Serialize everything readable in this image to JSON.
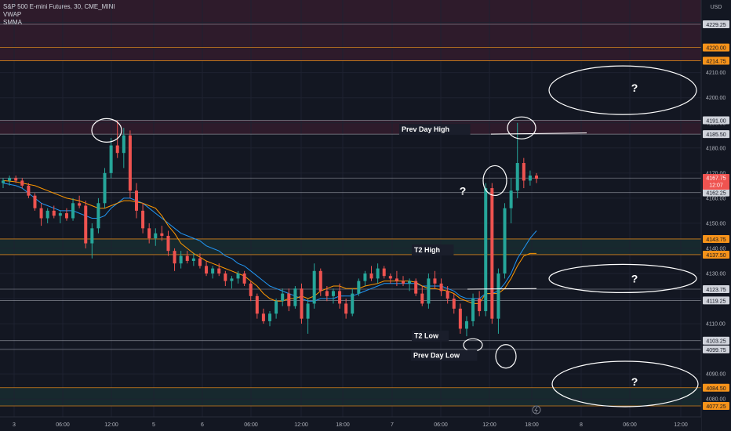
{
  "legend": {
    "symbol": "S&P 500 E-mini Futures, 30, CME_MINI",
    "indicator1": "VWAP",
    "indicator2": "SMMA"
  },
  "currency": "USD",
  "price_badge": {
    "price": "4167.75",
    "countdown": "12:07"
  },
  "colors": {
    "background": "#131722",
    "up": "#26a69a",
    "down": "#ef5350",
    "vwap": "#2196f3",
    "smma": "#ff9800",
    "level_white": "#b2b5be",
    "level_orange": "#f7931a"
  },
  "chart_data": {
    "type": "candlestick",
    "ylim": [
      4070,
      4245
    ],
    "y_ticks": [
      4080,
      4090,
      4100,
      4110,
      4120,
      4130,
      4140,
      4150,
      4160,
      4170,
      4180,
      4190,
      4200,
      4210,
      4220,
      4230,
      4240
    ],
    "x_ticks": [
      "3",
      "06:00",
      "12:00",
      "5",
      "6",
      "06:00",
      "12:00",
      "18:00",
      "7",
      "06:00",
      "12:00",
      "18:00",
      "8",
      "06:00",
      "12:00"
    ],
    "levels": [
      {
        "price": 4229.25,
        "label": "4229.25",
        "style": "white"
      },
      {
        "price": 4220.0,
        "label": "4220.00",
        "style": "orange"
      },
      {
        "price": 4214.75,
        "label": "4214.75",
        "style": "orange"
      },
      {
        "price": 4191.0,
        "label": "4191.00",
        "style": "white"
      },
      {
        "price": 4185.5,
        "label": "4185.50",
        "style": "white"
      },
      {
        "price": 4168.0,
        "label": "4168.00",
        "style": "white"
      },
      {
        "price": 4162.25,
        "label": "4162.25",
        "style": "white"
      },
      {
        "price": 4143.75,
        "label": "4143.75",
        "style": "orange"
      },
      {
        "price": 4137.5,
        "label": "4137.50",
        "style": "orange"
      },
      {
        "price": 4123.75,
        "label": "4123.75",
        "style": "white"
      },
      {
        "price": 4119.25,
        "label": "4119.25",
        "style": "white"
      },
      {
        "price": 4103.25,
        "label": "4103.25",
        "style": "white"
      },
      {
        "price": 4099.75,
        "label": "4099.75",
        "style": "white"
      },
      {
        "price": 4084.5,
        "label": "4084.50",
        "style": "orange"
      },
      {
        "price": 4077.25,
        "label": "4077.25",
        "style": "orange"
      }
    ],
    "zones": [
      {
        "from": 4214.75,
        "to": 4240.0,
        "kind": "supply"
      },
      {
        "from": 4185.5,
        "to": 4191.0,
        "kind": "supply"
      },
      {
        "from": 4137.5,
        "to": 4143.75,
        "kind": "demand"
      },
      {
        "from": 4077.25,
        "to": 4084.5,
        "kind": "demand"
      }
    ],
    "annotations": [
      {
        "text": "Prev Day High",
        "price": 4185.5
      },
      {
        "text": "T2 High",
        "price": 4137.5
      },
      {
        "text": "T2 Low",
        "price": 4103.25
      },
      {
        "text": "Prev Day Low",
        "price": 4095.5
      },
      {
        "text": "?",
        "price": 4204
      },
      {
        "text": "?",
        "price": 4163
      },
      {
        "text": "?",
        "price": 4128
      },
      {
        "text": "?",
        "price": 4087
      }
    ],
    "candles": [
      [
        4166,
        4168,
        4164,
        4167
      ],
      [
        4167,
        4169,
        4165,
        4168
      ],
      [
        4168,
        4169,
        4166,
        4167
      ],
      [
        4167,
        4168,
        4164,
        4165
      ],
      [
        4165,
        4166,
        4160,
        4161
      ],
      [
        4161,
        4162,
        4155,
        4156
      ],
      [
        4156,
        4158,
        4149,
        4152
      ],
      [
        4152,
        4156,
        4150,
        4155
      ],
      [
        4155,
        4157,
        4152,
        4153
      ],
      [
        4153,
        4155,
        4150,
        4154
      ],
      [
        4154,
        4156,
        4151,
        4152
      ],
      [
        4152,
        4160,
        4151,
        4158
      ],
      [
        4158,
        4161,
        4156,
        4157
      ],
      [
        4157,
        4159,
        4140,
        4142
      ],
      [
        4142,
        4150,
        4136,
        4148
      ],
      [
        4148,
        4160,
        4146,
        4158
      ],
      [
        4158,
        4172,
        4156,
        4170
      ],
      [
        4170,
        4184,
        4168,
        4181
      ],
      [
        4181,
        4191,
        4176,
        4178
      ],
      [
        4178,
        4188,
        4172,
        4185
      ],
      [
        4185,
        4187,
        4160,
        4163
      ],
      [
        4163,
        4166,
        4152,
        4155
      ],
      [
        4155,
        4158,
        4146,
        4148
      ],
      [
        4148,
        4150,
        4142,
        4144
      ],
      [
        4144,
        4148,
        4141,
        4146
      ],
      [
        4146,
        4149,
        4143,
        4145
      ],
      [
        4145,
        4147,
        4137,
        4139
      ],
      [
        4139,
        4140,
        4131,
        4134
      ],
      [
        4134,
        4139,
        4132,
        4137
      ],
      [
        4137,
        4139,
        4134,
        4135
      ],
      [
        4135,
        4138,
        4133,
        4136
      ],
      [
        4136,
        4138,
        4132,
        4133
      ],
      [
        4133,
        4135,
        4129,
        4130
      ],
      [
        4130,
        4133,
        4128,
        4132
      ],
      [
        4132,
        4134,
        4129,
        4130
      ],
      [
        4130,
        4131,
        4125,
        4127
      ],
      [
        4127,
        4129,
        4124,
        4128
      ],
      [
        4128,
        4131,
        4126,
        4130
      ],
      [
        4130,
        4131,
        4125,
        4126
      ],
      [
        4126,
        4127,
        4119,
        4121
      ],
      [
        4121,
        4122,
        4112,
        4114
      ],
      [
        4114,
        4116,
        4110,
        4111
      ],
      [
        4111,
        4115,
        4109,
        4114
      ],
      [
        4114,
        4120,
        4112,
        4119
      ],
      [
        4119,
        4124,
        4117,
        4122
      ],
      [
        4122,
        4124,
        4115,
        4117
      ],
      [
        4117,
        4125,
        4116,
        4124
      ],
      [
        4124,
        4126,
        4110,
        4112
      ],
      [
        4112,
        4120,
        4106,
        4118
      ],
      [
        4118,
        4134,
        4116,
        4131
      ],
      [
        4131,
        4132,
        4121,
        4123
      ],
      [
        4123,
        4125,
        4119,
        4121
      ],
      [
        4121,
        4124,
        4118,
        4123
      ],
      [
        4123,
        4126,
        4116,
        4118
      ],
      [
        4118,
        4120,
        4112,
        4114
      ],
      [
        4114,
        4124,
        4113,
        4122
      ],
      [
        4122,
        4128,
        4121,
        4127
      ],
      [
        4127,
        4131,
        4125,
        4130
      ],
      [
        4130,
        4133,
        4127,
        4128
      ],
      [
        4128,
        4134,
        4126,
        4132
      ],
      [
        4132,
        4133,
        4128,
        4129
      ],
      [
        4129,
        4130,
        4126,
        4128
      ],
      [
        4128,
        4131,
        4125,
        4127
      ],
      [
        4127,
        4129,
        4125,
        4126
      ],
      [
        4126,
        4128,
        4123,
        4127
      ],
      [
        4127,
        4128,
        4121,
        4122
      ],
      [
        4122,
        4125,
        4117,
        4118
      ],
      [
        4118,
        4130,
        4116,
        4128
      ],
      [
        4128,
        4131,
        4124,
        4126
      ],
      [
        4126,
        4128,
        4121,
        4123
      ],
      [
        4123,
        4125,
        4118,
        4120
      ],
      [
        4120,
        4122,
        4114,
        4116
      ],
      [
        4116,
        4118,
        4106,
        4108
      ],
      [
        4108,
        4113,
        4105,
        4111
      ],
      [
        4111,
        4122,
        4109,
        4120
      ],
      [
        4120,
        4123,
        4113,
        4115
      ],
      [
        4115,
        4166,
        4113,
        4164
      ],
      [
        4164,
        4166,
        4110,
        4112
      ],
      [
        4112,
        4132,
        4106,
        4130
      ],
      [
        4130,
        4158,
        4128,
        4156
      ],
      [
        4156,
        4168,
        4150,
        4163
      ],
      [
        4163,
        4190,
        4160,
        4174
      ],
      [
        4174,
        4176,
        4164,
        4167
      ],
      [
        4167,
        4171,
        4165,
        4169
      ],
      [
        4169,
        4170,
        4166,
        4167.75
      ]
    ],
    "vwap": [
      4166,
      4165.5,
      4165,
      4164,
      4162,
      4160,
      4158,
      4157,
      4156,
      4155,
      4155,
      4155,
      4154,
      4153,
      4152,
      4152,
      4153,
      4156,
      4158,
      4160,
      4160,
      4159,
      4158,
      4156,
      4154,
      4152,
      4150,
      4148,
      4146,
      4145,
      4144,
      4143,
      4141,
      4140,
      4139,
      4137,
      4136,
      4134,
      4133,
      4131,
      4129,
      4127,
      4125,
      4124,
      4123,
      4122,
      4121,
      4120,
      4119,
      4119,
      4120,
      4120,
      4120,
      4121,
      4121,
      4121,
      4122,
      4123,
      4124,
      4125,
      4126,
      4126,
      4126,
      4126,
      4126,
      4126,
      4125,
      4125,
      4125,
      4125,
      4124,
      4123,
      4121,
      4120,
      4120,
      4120,
      4122,
      4122,
      4123,
      4126,
      4130,
      4136,
      4140,
      4144,
      4147
    ],
    "smma": [
      4167,
      4166.8,
      4166.5,
      4166,
      4165.5,
      4165,
      4164,
      4163,
      4162,
      4161,
      4160,
      4159.5,
      4159,
      4158,
      4157,
      4156,
      4156,
      4157,
      4158,
      4159,
      4159,
      4158.5,
      4158,
      4157,
      4156,
      4153,
      4149,
      4146,
      4142,
      4140,
      4138,
      4136.5,
      4135,
      4134,
      4133,
      4132,
      4131,
      4130,
      4129,
      4127,
      4125,
      4122,
      4120,
      4119,
      4119,
      4120,
      4120,
      4121,
      4120,
      4121,
      4123,
      4124,
      4125,
      4125,
      4124,
      4124,
      4124,
      4125,
      4125.5,
      4126,
      4127,
      4127,
      4127,
      4127,
      4127,
      4126.5,
      4125,
      4124,
      4124,
      4123.5,
      4123,
      4122,
      4120,
      4119,
      4118,
      4118,
      4122,
      4122,
      4122,
      4124,
      4128,
      4133,
      4137,
      4138,
      4138
    ]
  }
}
